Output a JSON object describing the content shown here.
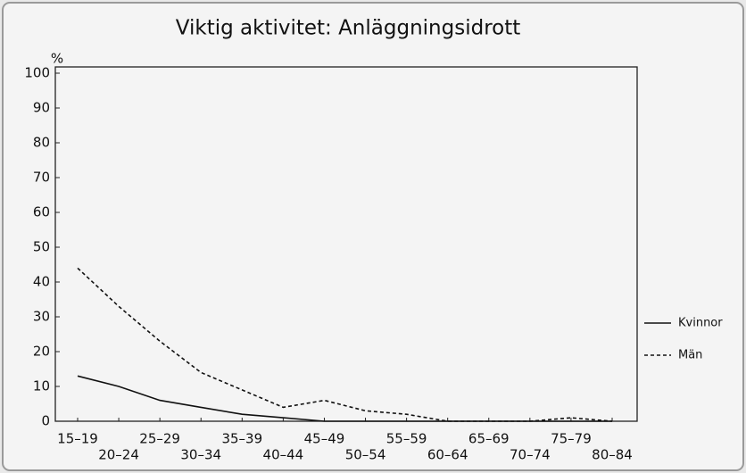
{
  "chart_data": {
    "type": "line",
    "title": "Viktig aktivitet: Anläggningsidrott",
    "ylabel": "%",
    "categories": [
      "15–19",
      "20–24",
      "25–29",
      "30–34",
      "35–39",
      "40–44",
      "45–49",
      "50–54",
      "55–59",
      "60–64",
      "65–69",
      "70–74",
      "75–79",
      "80–84"
    ],
    "series": [
      {
        "name": "Kvinnor",
        "color": "#111111",
        "line_style": "solid",
        "values": [
          13,
          10,
          6,
          4,
          2,
          1,
          0,
          0,
          0,
          0,
          0,
          0,
          0,
          0
        ]
      },
      {
        "name": "Män",
        "color": "#111111",
        "line_style": "dashed",
        "values": [
          44,
          33,
          23,
          14,
          9,
          4,
          6,
          3,
          2,
          0,
          0,
          0,
          1,
          0
        ]
      }
    ],
    "ylim": [
      0,
      100
    ],
    "yticks": [
      0,
      10,
      20,
      30,
      40,
      50,
      60,
      70,
      80,
      90,
      100
    ],
    "grid": false,
    "legend": "right"
  }
}
